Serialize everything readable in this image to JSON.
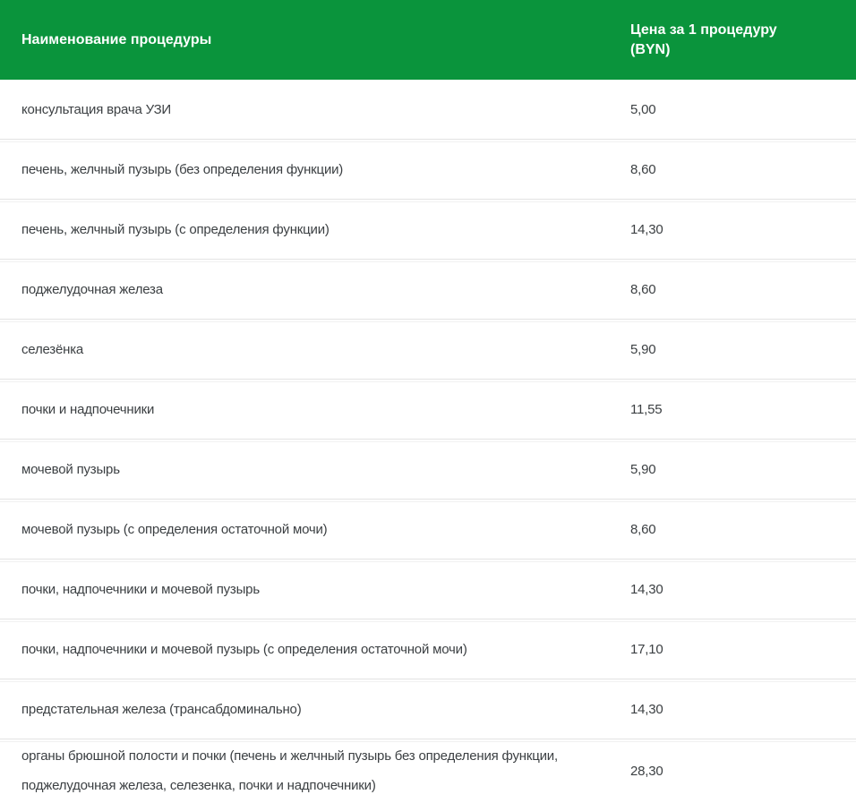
{
  "theme": {
    "header_bg": "#0a943c",
    "header_text": "#ffffff",
    "row_bg": "#ffffff",
    "row_divider": "#e3e3e3",
    "body_text": "#3c4043"
  },
  "table": {
    "columns": {
      "procedure": "Наименование процедуры",
      "price_line1": "Цена за 1 процедуру",
      "price_line2": "(BYN)"
    },
    "rows": [
      {
        "name": "консультация врача УЗИ",
        "price": "5,00"
      },
      {
        "name": "печень, желчный пузырь (без определения функции)",
        "price": "8,60"
      },
      {
        "name": "печень, желчный пузырь (с определения функции)",
        "price": "14,30"
      },
      {
        "name": "поджелудочная железа",
        "price": "8,60"
      },
      {
        "name": "селезёнка",
        "price": "5,90"
      },
      {
        "name": "почки и надпочечники",
        "price": "11,55"
      },
      {
        "name": "мочевой пузырь",
        "price": "5,90"
      },
      {
        "name": "мочевой пузырь (с определения остаточной мочи)",
        "price": "8,60"
      },
      {
        "name": "почки, надпочечники и мочевой пузырь",
        "price": "14,30"
      },
      {
        "name": "почки, надпочечники и мочевой пузырь (с определения остаточной мочи)",
        "price": "17,10"
      },
      {
        "name": "предстательная железа (трансабдоминально)",
        "price": "14,30"
      },
      {
        "name": "органы брюшной полости и почки (печень и желчный пузырь без определения функции, поджелудочная железа, селезенка, почки и надпочечники)",
        "price": "28,30"
      }
    ]
  }
}
